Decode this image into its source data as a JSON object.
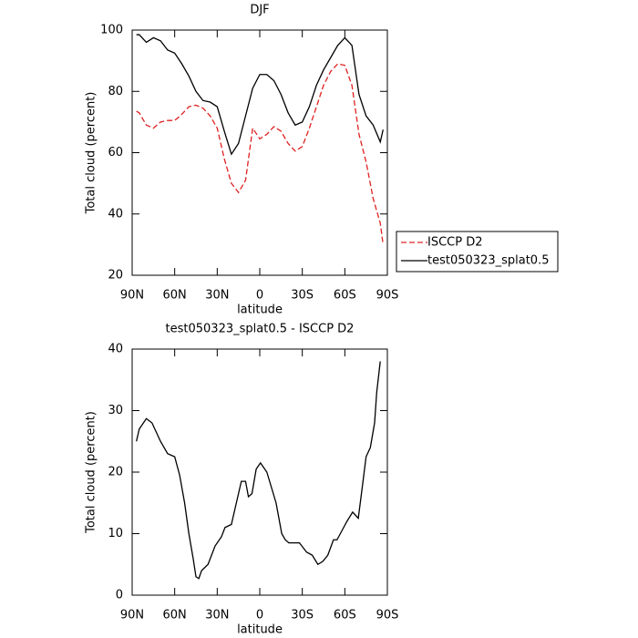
{
  "chart_data": [
    {
      "type": "line",
      "title": "DJF",
      "xlabel": "latitude",
      "ylabel": "Total cloud (percent)",
      "x": [
        87,
        85,
        80,
        75,
        70,
        65,
        60,
        55,
        50,
        45,
        40,
        35,
        30,
        25,
        20,
        15,
        10,
        5,
        0,
        -5,
        -10,
        -15,
        -20,
        -25,
        -30,
        -35,
        -40,
        -45,
        -50,
        -55,
        -60,
        -65,
        -70,
        -75,
        -80,
        -85,
        -87
      ],
      "series": [
        {
          "name": "ISCCP D2",
          "color": "#e02020",
          "linestyle": "dashed",
          "values": [
            73.5,
            73,
            69,
            68,
            70,
            70.5,
            70.5,
            72.5,
            75,
            75.5,
            74.5,
            72,
            68,
            58,
            50,
            47,
            51,
            68,
            64.5,
            66,
            68.5,
            67,
            63,
            60.5,
            62,
            68,
            75,
            82,
            86.5,
            89,
            88.5,
            82,
            66,
            57,
            45,
            37,
            30
          ]
        },
        {
          "name": "test050323_splat0.5",
          "color": "#000000",
          "linestyle": "solid",
          "values": [
            98.5,
            98.5,
            96,
            97.5,
            96.5,
            93.5,
            92.5,
            89,
            85,
            80,
            77,
            76.5,
            75,
            67,
            59.5,
            63,
            72,
            81,
            85.5,
            85.5,
            83.5,
            79,
            73,
            69,
            70,
            75,
            82,
            87,
            91,
            95,
            97.5,
            95,
            79,
            72,
            69,
            63.5,
            67.5
          ]
        }
      ],
      "xlim": [
        90,
        -90
      ],
      "xticks": [
        {
          "value": 90,
          "label": "90N"
        },
        {
          "value": 60,
          "label": "60N"
        },
        {
          "value": 30,
          "label": "30N"
        },
        0,
        {
          "value": -30,
          "label": "30S"
        },
        {
          "value": -60,
          "label": "60S"
        },
        {
          "value": -90,
          "label": "90S"
        }
      ],
      "ylim": [
        20,
        100
      ],
      "yticks": [
        20,
        40,
        60,
        80,
        100
      ],
      "legend": "right"
    },
    {
      "type": "line",
      "title": "test050323_splat0.5 - ISCCP D2",
      "xlabel": "latitude",
      "ylabel": "Total cloud (percent)",
      "x": [
        87,
        85,
        80,
        76,
        70,
        65,
        60,
        56.5,
        53,
        50,
        47,
        45,
        43,
        41,
        36.5,
        31.5,
        27,
        24.5,
        20,
        16.5,
        13,
        10,
        8,
        5.5,
        2.5,
        -0.5,
        -5,
        -11.5,
        -15.5,
        -18,
        -20.5,
        -25.5,
        -28,
        -33,
        -37,
        -41,
        -44.5,
        -48,
        -52,
        -54.5,
        -58,
        -61.5,
        -65.5,
        -69.5,
        -72,
        -75,
        -78,
        -81,
        -82.5,
        -85
      ],
      "series": [
        {
          "color": "#000000",
          "linestyle": "solid",
          "values": [
            25,
            27,
            28.7,
            28,
            25,
            23,
            22.5,
            19.5,
            15,
            10,
            6,
            3,
            2.7,
            4,
            5,
            8,
            9.5,
            11,
            11.5,
            15,
            18.5,
            18.5,
            16,
            16.5,
            20.5,
            21.5,
            20,
            15,
            10,
            9,
            8.5,
            8.5,
            8.5,
            7,
            6.5,
            5,
            5.5,
            6.5,
            9,
            9,
            10.5,
            12,
            13.5,
            12.5,
            17,
            22.5,
            24,
            28,
            33,
            38
          ]
        }
      ],
      "xlim": [
        90,
        -90
      ],
      "xticks": [
        {
          "value": 90,
          "label": "90N"
        },
        {
          "value": 60,
          "label": "60N"
        },
        {
          "value": 30,
          "label": "30N"
        },
        0,
        {
          "value": -30,
          "label": "30S"
        },
        {
          "value": -60,
          "label": "60S"
        },
        {
          "value": -90,
          "label": "90S"
        }
      ],
      "ylim": [
        0,
        40
      ],
      "yticks": [
        0,
        10,
        20,
        30,
        40
      ]
    }
  ]
}
